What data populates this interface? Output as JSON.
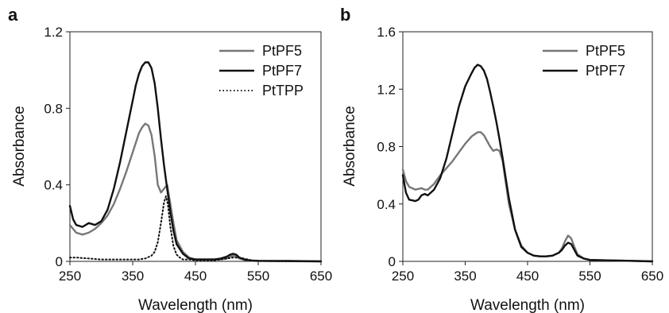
{
  "chart_data": [
    {
      "panel_label": "a",
      "type": "line",
      "xlabel": "Wavelength (nm)",
      "ylabel": "Absorbance",
      "xlim": [
        250,
        650
      ],
      "ylim": [
        0,
        1.2
      ],
      "x_ticks": [
        "250",
        "350",
        "450",
        "550",
        "650"
      ],
      "y_ticks": [
        "0",
        "0.4",
        "0.8",
        "1.2"
      ],
      "x_tick_values": [
        250,
        350,
        450,
        550,
        650
      ],
      "y_tick_values": [
        0,
        0.4,
        0.8,
        1.2
      ],
      "grid": false,
      "legend_position": "top-right",
      "series": [
        {
          "name": "PtPF5",
          "color": "#777777",
          "style": "solid",
          "x": [
            250,
            260,
            270,
            280,
            290,
            300,
            310,
            320,
            330,
            340,
            350,
            360,
            365,
            370,
            375,
            380,
            385,
            390,
            395,
            400,
            405,
            410,
            415,
            420,
            430,
            440,
            450,
            460,
            470,
            480,
            490,
            500,
            505,
            510,
            515,
            520,
            530,
            540,
            550,
            600,
            650
          ],
          "y": [
            0.19,
            0.15,
            0.14,
            0.15,
            0.17,
            0.2,
            0.24,
            0.3,
            0.38,
            0.47,
            0.57,
            0.67,
            0.7,
            0.72,
            0.71,
            0.66,
            0.55,
            0.4,
            0.36,
            0.38,
            0.4,
            0.3,
            0.2,
            0.11,
            0.05,
            0.02,
            0.01,
            0.01,
            0.01,
            0.01,
            0.01,
            0.015,
            0.025,
            0.03,
            0.025,
            0.015,
            0.006,
            0.003,
            0.002,
            0.001,
            0.0
          ]
        },
        {
          "name": "PtPF7",
          "color": "#111111",
          "style": "solid",
          "x": [
            250,
            255,
            260,
            270,
            280,
            290,
            300,
            310,
            320,
            330,
            340,
            350,
            355,
            360,
            365,
            370,
            375,
            380,
            385,
            390,
            395,
            400,
            405,
            410,
            415,
            420,
            430,
            440,
            450,
            460,
            470,
            480,
            490,
            500,
            505,
            510,
            515,
            520,
            530,
            540,
            550,
            600,
            650
          ],
          "y": [
            0.29,
            0.22,
            0.19,
            0.18,
            0.2,
            0.19,
            0.21,
            0.27,
            0.38,
            0.52,
            0.68,
            0.84,
            0.92,
            0.98,
            1.02,
            1.04,
            1.04,
            1.01,
            0.93,
            0.8,
            0.64,
            0.5,
            0.38,
            0.26,
            0.16,
            0.09,
            0.04,
            0.015,
            0.01,
            0.01,
            0.01,
            0.01,
            0.015,
            0.025,
            0.035,
            0.04,
            0.035,
            0.02,
            0.008,
            0.004,
            0.003,
            0.002,
            0.0
          ]
        },
        {
          "name": "PtTPP",
          "color": "#111111",
          "style": "dotted",
          "x": [
            250,
            260,
            280,
            300,
            320,
            340,
            360,
            370,
            380,
            385,
            390,
            395,
            400,
            403,
            406,
            410,
            415,
            420,
            425,
            430,
            440,
            450,
            480,
            510,
            520,
            540,
            550,
            600,
            650
          ],
          "y": [
            0.02,
            0.02,
            0.015,
            0.01,
            0.01,
            0.01,
            0.01,
            0.015,
            0.03,
            0.05,
            0.1,
            0.2,
            0.31,
            0.34,
            0.3,
            0.18,
            0.08,
            0.035,
            0.02,
            0.01,
            0.01,
            0.005,
            0.005,
            0.02,
            0.02,
            0.005,
            0.002,
            0.0,
            0.0
          ]
        }
      ]
    },
    {
      "panel_label": "b",
      "type": "line",
      "xlabel": "Wavelength (nm)",
      "ylabel": "Absorbance",
      "xlim": [
        250,
        650
      ],
      "ylim": [
        0,
        1.6
      ],
      "x_ticks": [
        "250",
        "350",
        "450",
        "550",
        "650"
      ],
      "y_ticks": [
        "0",
        "0.4",
        "0.8",
        "1.2",
        "1.6"
      ],
      "x_tick_values": [
        250,
        350,
        450,
        550,
        650
      ],
      "y_tick_values": [
        0,
        0.4,
        0.8,
        1.2,
        1.6
      ],
      "grid": false,
      "legend_position": "top-right",
      "series": [
        {
          "name": "PtPF5",
          "color": "#777777",
          "style": "solid",
          "x": [
            250,
            255,
            260,
            270,
            280,
            285,
            290,
            300,
            310,
            320,
            330,
            340,
            350,
            360,
            370,
            375,
            380,
            390,
            395,
            400,
            405,
            410,
            415,
            420,
            430,
            440,
            450,
            460,
            470,
            480,
            490,
            500,
            505,
            510,
            515,
            520,
            525,
            530,
            540,
            550,
            600,
            650
          ],
          "y": [
            0.64,
            0.56,
            0.52,
            0.5,
            0.51,
            0.5,
            0.5,
            0.54,
            0.6,
            0.65,
            0.7,
            0.76,
            0.82,
            0.87,
            0.9,
            0.9,
            0.88,
            0.8,
            0.77,
            0.78,
            0.77,
            0.7,
            0.55,
            0.4,
            0.22,
            0.11,
            0.06,
            0.04,
            0.035,
            0.035,
            0.04,
            0.06,
            0.09,
            0.14,
            0.18,
            0.16,
            0.1,
            0.05,
            0.02,
            0.01,
            0.005,
            0.0
          ]
        },
        {
          "name": "PtPF7",
          "color": "#111111",
          "style": "solid",
          "x": [
            250,
            255,
            260,
            270,
            275,
            280,
            285,
            290,
            300,
            310,
            320,
            330,
            340,
            350,
            360,
            365,
            370,
            375,
            380,
            385,
            390,
            395,
            400,
            405,
            410,
            415,
            420,
            430,
            440,
            450,
            460,
            470,
            480,
            490,
            500,
            505,
            510,
            515,
            520,
            525,
            530,
            540,
            550,
            600,
            650
          ],
          "y": [
            0.6,
            0.48,
            0.43,
            0.42,
            0.43,
            0.46,
            0.47,
            0.46,
            0.5,
            0.58,
            0.72,
            0.9,
            1.08,
            1.22,
            1.31,
            1.35,
            1.37,
            1.36,
            1.33,
            1.27,
            1.18,
            1.08,
            0.97,
            0.85,
            0.72,
            0.58,
            0.44,
            0.22,
            0.1,
            0.06,
            0.04,
            0.035,
            0.035,
            0.04,
            0.06,
            0.08,
            0.11,
            0.13,
            0.12,
            0.08,
            0.04,
            0.02,
            0.01,
            0.005,
            0.0
          ]
        }
      ]
    }
  ]
}
